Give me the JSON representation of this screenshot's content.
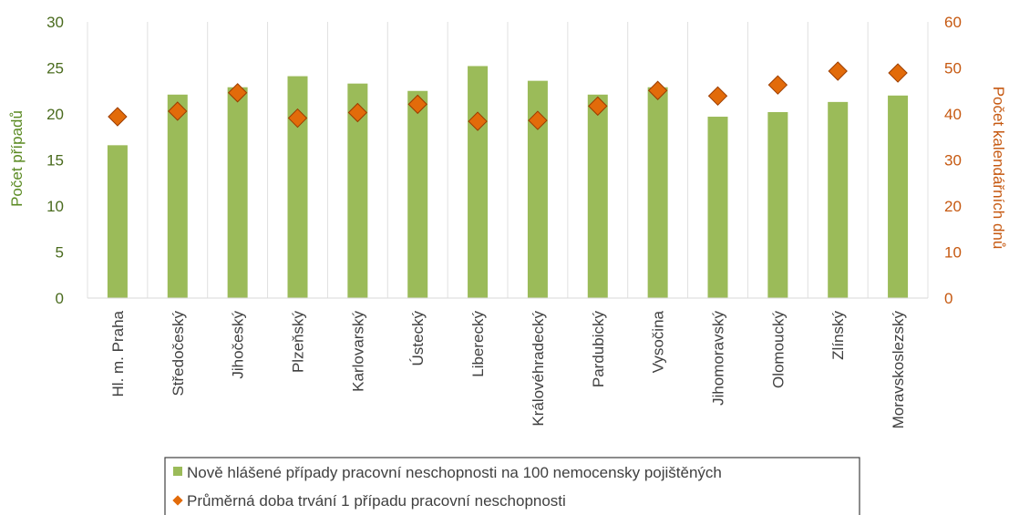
{
  "chart_data": {
    "type": "bar",
    "categories": [
      "Hl. m. Praha",
      "Středočeský",
      "Jihočeský",
      "Plzeňský",
      "Karlovarský",
      "Ústecký",
      "Liberecký",
      "Královéhradecký",
      "Pardubický",
      "Vysočina",
      "Jihomoravský",
      "Olomoucký",
      "Zlínský",
      "Moravskoslezský"
    ],
    "series": [
      {
        "name": "Nově hlášené případy pracovní neschopnosti na 100 nemocensky pojištěných",
        "type": "bar",
        "axis": "left",
        "color": "#9bbb59",
        "values": [
          16.6,
          22.1,
          22.9,
          24.1,
          23.3,
          22.5,
          25.2,
          23.6,
          22.1,
          22.9,
          19.7,
          20.2,
          21.3,
          22.0
        ]
      },
      {
        "name": "Průměrná doba trvání 1 případu pracovní neschopnosti",
        "type": "scatter",
        "axis": "right",
        "color": "#e26b0a",
        "marker": "diamond",
        "values": [
          39.4,
          40.6,
          44.6,
          39.1,
          40.3,
          42.1,
          38.4,
          38.6,
          41.7,
          45.1,
          43.9,
          46.3,
          49.3,
          48.9
        ]
      }
    ],
    "ylabel": "Počet případů",
    "ylabel_right": "Počet kalendářních dnů",
    "ylim": [
      0,
      30
    ],
    "ylim_right": [
      0,
      60
    ],
    "yticks": [
      "0",
      "5",
      "10",
      "15",
      "20",
      "25",
      "30"
    ],
    "yticks_right": [
      "0",
      "10",
      "20",
      "30",
      "40",
      "50",
      "60"
    ],
    "grid": "vertical",
    "legend_position": "bottom"
  }
}
